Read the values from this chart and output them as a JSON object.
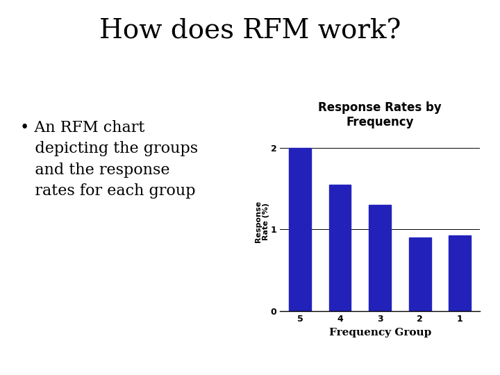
{
  "title": "How does RFM work?",
  "bullet_lines": [
    "An RFM chart",
    "depicting the groups",
    "and the response",
    "rates for each group"
  ],
  "chart_title": "Response Rates by\nFrequency",
  "xlabel": "Frequency Group",
  "ylabel": "Response\nRate (%)",
  "categories": [
    "5",
    "4",
    "3",
    "2",
    "1"
  ],
  "values": [
    2.0,
    1.55,
    1.3,
    0.9,
    0.93
  ],
  "bar_color": "#2222BB",
  "ylim": [
    0,
    2.2
  ],
  "yticks": [
    0,
    1,
    2
  ],
  "background_color": "#ffffff",
  "title_fontsize": 28,
  "bullet_fontsize": 16,
  "chart_title_fontsize": 12,
  "axis_label_fontsize": 9,
  "tick_fontsize": 9
}
